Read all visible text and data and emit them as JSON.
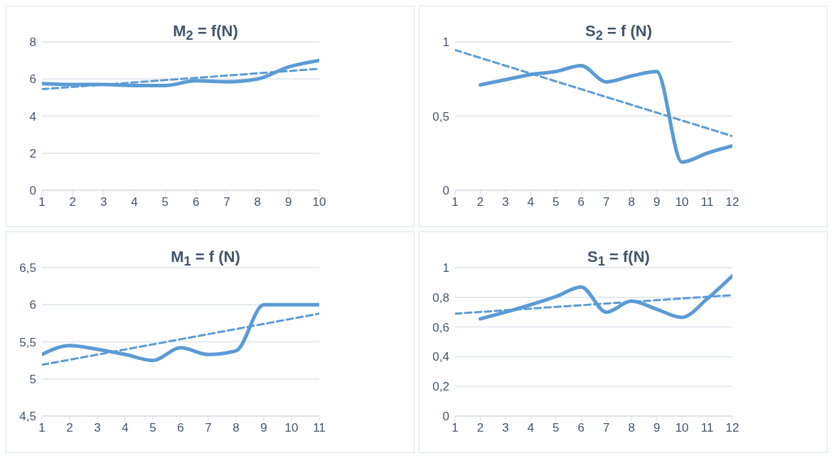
{
  "chart_data": [
    {
      "type": "line",
      "title": "M$_{2}$ = f(N)",
      "xlim": [
        1,
        10
      ],
      "xticks": [
        1,
        2,
        3,
        4,
        5,
        6,
        7,
        8,
        9,
        10
      ],
      "ylim": [
        0,
        8
      ],
      "yticks": [
        0,
        2,
        4,
        6,
        8
      ],
      "grid": "y",
      "marker": "none",
      "series": [
        {
          "color": "#5b9bd5",
          "line_style": "solid",
          "x": [
            1,
            2,
            3,
            4,
            5,
            6,
            7,
            8,
            9,
            10
          ],
          "values": [
            5.75,
            5.7,
            5.7,
            5.65,
            5.65,
            5.9,
            5.85,
            6.0,
            6.65,
            7.0
          ]
        },
        {
          "color": "#5b9bd5",
          "line_style": "dashed",
          "x": [
            1,
            10
          ],
          "values": [
            5.45,
            6.55
          ]
        }
      ]
    },
    {
      "type": "line",
      "title": "S$_{2}$ = f (N)",
      "xlim": [
        1,
        12
      ],
      "xticks": [
        1,
        2,
        3,
        4,
        5,
        6,
        7,
        8,
        9,
        10,
        11,
        12
      ],
      "ylim": [
        0,
        1
      ],
      "yticks": [
        0,
        {
          "value": 0.5,
          "label": "0,5"
        },
        1
      ],
      "grid": "y",
      "marker": "none",
      "series": [
        {
          "color": "#5b9bd5",
          "line_style": "solid",
          "x": [
            2,
            3,
            4,
            5,
            6,
            7,
            8,
            9,
            10,
            11,
            12
          ],
          "values": [
            0.71,
            0.745,
            0.78,
            0.8,
            0.84,
            0.73,
            0.77,
            0.8,
            0.19,
            0.25,
            0.3
          ]
        },
        {
          "color": "#5b9bd5",
          "line_style": "dashed",
          "x": [
            1,
            12
          ],
          "values": [
            0.945,
            0.365
          ]
        }
      ]
    },
    {
      "type": "line",
      "title": "M$_{1}$ = f (N)",
      "xlim": [
        1,
        11
      ],
      "xticks": [
        1,
        2,
        3,
        4,
        5,
        6,
        7,
        8,
        9,
        10,
        11
      ],
      "ylim": [
        4.5,
        6.5
      ],
      "yticks": [
        {
          "value": 4.5,
          "label": "4,5"
        },
        5,
        {
          "value": 5.5,
          "label": "5,5"
        },
        6,
        {
          "value": 6.5,
          "label": "6,5"
        }
      ],
      "grid": "y",
      "marker": "none",
      "series": [
        {
          "color": "#5b9bd5",
          "line_style": "solid",
          "x": [
            1,
            2,
            3,
            4,
            5,
            6,
            7,
            8,
            9,
            10,
            11
          ],
          "values": [
            5.33,
            5.45,
            5.4,
            5.33,
            5.25,
            5.42,
            5.33,
            5.38,
            6.0,
            6.0,
            6.0
          ]
        },
        {
          "color": "#5b9bd5",
          "line_style": "dashed",
          "x": [
            1,
            11
          ],
          "values": [
            5.19,
            5.88
          ]
        }
      ]
    },
    {
      "type": "line",
      "title": "S$_{1}$ =  f(N)",
      "xlim": [
        1,
        12
      ],
      "xticks": [
        1,
        2,
        3,
        4,
        5,
        6,
        7,
        8,
        9,
        10,
        11,
        12
      ],
      "ylim": [
        0,
        1
      ],
      "yticks": [
        0,
        {
          "value": 0.2,
          "label": "0,2"
        },
        {
          "value": 0.4,
          "label": "0,4"
        },
        {
          "value": 0.6,
          "label": "0,6"
        },
        {
          "value": 0.8,
          "label": "0,8"
        },
        1
      ],
      "grid": "y",
      "marker": "none",
      "series": [
        {
          "color": "#5b9bd5",
          "line_style": "solid",
          "x": [
            2,
            3,
            4,
            5,
            6,
            7,
            8,
            9,
            10,
            11,
            12
          ],
          "values": [
            0.655,
            0.7,
            0.75,
            0.805,
            0.87,
            0.7,
            0.775,
            0.72,
            0.665,
            0.79,
            0.945
          ]
        },
        {
          "color": "#5b9bd5",
          "line_style": "dashed",
          "x": [
            1,
            12
          ],
          "values": [
            0.69,
            0.815
          ]
        }
      ]
    }
  ]
}
